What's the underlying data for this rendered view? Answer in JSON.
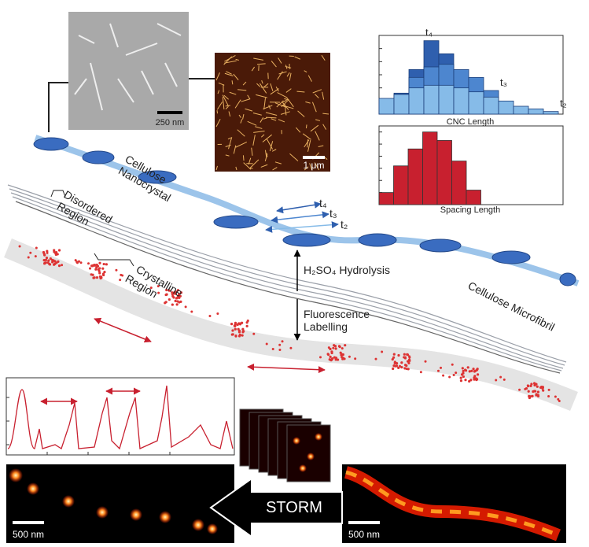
{
  "images": {
    "tem_scale": "250 nm",
    "afm_scale": "1 μm",
    "storm_left_scale": "500 nm",
    "storm_right_scale": "500 nm"
  },
  "labels": {
    "cnc": [
      "Cellulose",
      "Nanocrystal"
    ],
    "disordered": [
      "Disordered",
      "Region"
    ],
    "crystalline": [
      "Crystalline",
      "Region"
    ],
    "microfibril": "Cellulose Microfibril",
    "hydrolysis": "H₂SO₄ Hydrolysis",
    "labelling": [
      "Fluorescence",
      "Labelling"
    ],
    "times": [
      "t₄",
      "t₃",
      "t₂"
    ],
    "storm": "STORM"
  },
  "histograms": [
    {
      "type": "bar",
      "xlabel": "CNC Length",
      "ylim": [
        0,
        6
      ],
      "yticks": [
        0,
        1,
        2,
        3,
        4,
        5
      ],
      "series": [
        {
          "name": "t₄",
          "color": "#2f5fae",
          "values": [
            0.8,
            1.6,
            3.4,
            5.6,
            4.6,
            2.8,
            0,
            0,
            0,
            0,
            0,
            0
          ]
        },
        {
          "name": "t₃",
          "color": "#4d86cf",
          "values": [
            0.5,
            1.5,
            2.8,
            3.6,
            3.8,
            3.4,
            2.8,
            1.8,
            0,
            0,
            0,
            0
          ]
        },
        {
          "name": "t₂",
          "color": "#86bbe8",
          "values": [
            1.2,
            1.5,
            2,
            2.2,
            2.2,
            2,
            1.7,
            1.3,
            1,
            0.6,
            0.4,
            0.2
          ]
        }
      ]
    },
    {
      "type": "bar",
      "xlabel": "Spacing Length",
      "ylim": [
        0,
        6.5
      ],
      "yticks": [
        0,
        1,
        2,
        3,
        4,
        5,
        6
      ],
      "series": [
        {
          "color": "#c8202f",
          "values": [
            1,
            3.2,
            4.6,
            6,
            5.3,
            3.6,
            1.2
          ]
        }
      ]
    }
  ]
}
